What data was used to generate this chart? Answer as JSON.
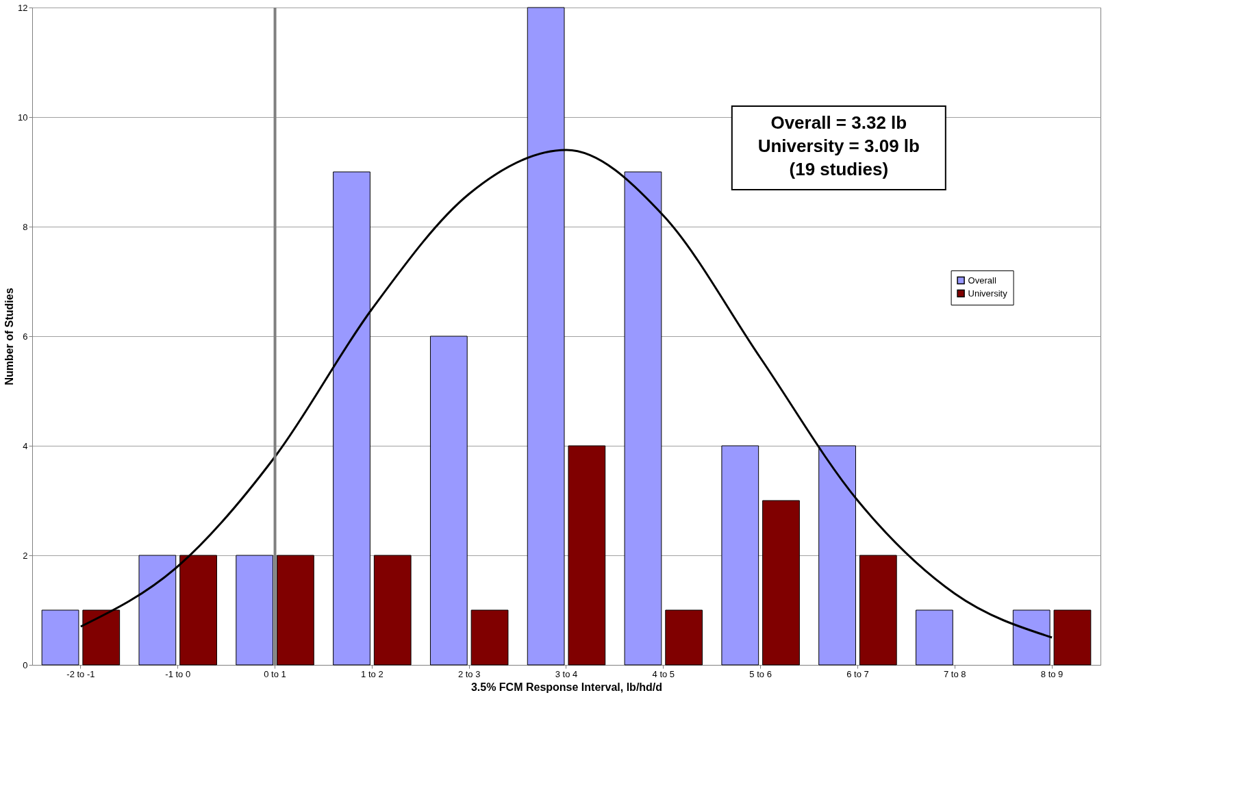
{
  "chart_data": {
    "type": "bar",
    "xlabel": "3.5% FCM Response Interval, lb/hd/d",
    "ylabel": "Number of Studies",
    "categories": [
      "-2 to -1",
      "-1 to 0",
      "0 to 1",
      "1 to 2",
      "2 to 3",
      "3 to 4",
      "4 to 5",
      "5 to 6",
      "6 to 7",
      "7 to 8",
      "8 to 9"
    ],
    "series": [
      {
        "name": "Overall",
        "color": "#9999ff",
        "values": [
          1,
          2,
          2,
          9,
          6,
          12,
          9,
          4,
          4,
          1,
          1
        ]
      },
      {
        "name": "University",
        "color": "#800000",
        "values": [
          1,
          2,
          2,
          2,
          1,
          4,
          1,
          3,
          2,
          null,
          1
        ]
      },
      {
        "type": "line",
        "color": "#000000",
        "x": [
          "-2 to -1",
          "-1 to 0",
          "0 to 1",
          "1 to 2",
          "2 to 3",
          "3 to 4",
          "4 to 5",
          "5 to 6",
          "6 to 7",
          "7 to 8",
          "8 to 9"
        ],
        "values": [
          0.7,
          1.8,
          3.8,
          6.5,
          8.6,
          9.4,
          8.2,
          5.6,
          3.0,
          1.3,
          0.5
        ]
      }
    ],
    "ylim": [
      0,
      12
    ],
    "yticks": [
      0,
      2,
      4,
      6,
      8,
      10,
      12
    ],
    "grid": "y",
    "legend": "right",
    "ref_lines": [
      {
        "axis": "x",
        "value": "0 to 1",
        "color": "#808080"
      }
    ],
    "annotations": [
      "Overall = 3.32 lb",
      "University = 3.09 lb",
      "(19 studies)"
    ]
  }
}
